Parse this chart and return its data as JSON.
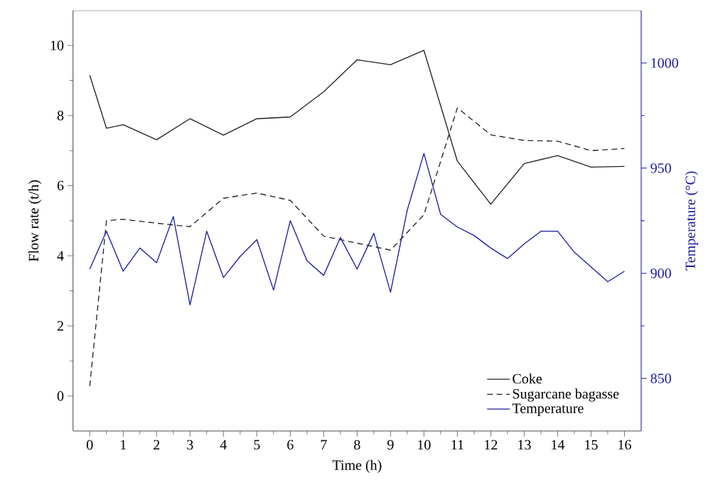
{
  "chart_data": {
    "type": "line",
    "xlabel": "Time (h)",
    "ylabel": "Flow rate (t/h)",
    "y2label": "Temperature (°C)",
    "xlim": [
      -0.5,
      16.5
    ],
    "xticks": [
      0,
      1,
      2,
      3,
      4,
      5,
      6,
      7,
      8,
      9,
      10,
      11,
      12,
      13,
      14,
      15,
      16
    ],
    "ylim": [
      -1,
      11
    ],
    "yticks": [
      0,
      2,
      4,
      6,
      8,
      10
    ],
    "y2lim": [
      825,
      1025
    ],
    "y2ticks": [
      850,
      900,
      950,
      1000
    ],
    "legend": "bottom right",
    "grid": false,
    "series": [
      {
        "name": "Coke",
        "color": "#222222",
        "line_style": "solid",
        "x": [
          0,
          0.5,
          1,
          2,
          3,
          4,
          5,
          6,
          7,
          8,
          9,
          10,
          11,
          12,
          13,
          14,
          15,
          16
        ],
        "values": [
          9.15,
          7.64,
          7.74,
          7.31,
          7.91,
          7.44,
          7.91,
          7.96,
          8.68,
          9.59,
          9.45,
          9.86,
          6.7,
          5.47,
          6.63,
          6.86,
          6.53,
          6.55
        ]
      },
      {
        "name": "Sugarcane bagasse",
        "color": "#222222",
        "line_style": "dashed",
        "x": [
          0,
          0.5,
          1,
          2,
          3,
          4,
          5,
          6,
          7,
          8,
          9,
          10,
          11,
          12,
          13,
          14,
          15,
          16
        ],
        "values": [
          0.28,
          5.0,
          5.04,
          4.93,
          4.83,
          5.64,
          5.79,
          5.58,
          4.56,
          4.36,
          4.16,
          5.17,
          8.22,
          7.45,
          7.29,
          7.27,
          7.0,
          7.06
        ]
      },
      {
        "name": "Temperature",
        "color": "#1c1c9c",
        "line_style": "solid",
        "axis": "y2",
        "x": [
          0,
          0.5,
          1,
          1.5,
          2,
          2.5,
          3,
          3.5,
          4,
          4.5,
          5,
          5.5,
          6,
          6.5,
          7,
          7.5,
          8,
          8.5,
          9,
          9.5,
          10,
          10.5,
          11,
          11.5,
          12,
          12.5,
          13,
          13.5,
          14,
          14.5,
          15,
          15.5,
          16
        ],
        "values": [
          902,
          920,
          901,
          912,
          905,
          927,
          885,
          920,
          898,
          908,
          916,
          892,
          925,
          906,
          899,
          917,
          902,
          919,
          891,
          930,
          957,
          928,
          922,
          918,
          912,
          907,
          914,
          920,
          920,
          910,
          903,
          896,
          901
        ]
      }
    ]
  }
}
